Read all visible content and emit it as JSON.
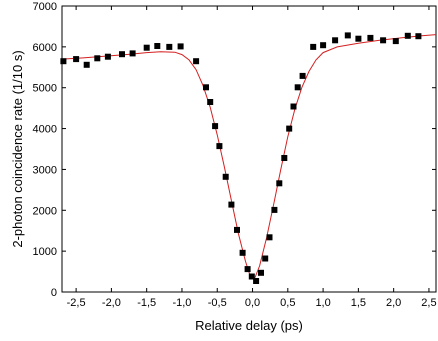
{
  "chart_data": {
    "type": "scatter",
    "title": "",
    "xlabel": "Relative delay (ps)",
    "ylabel": "2-photon coincidence rate (1/10 s)",
    "xlim": [
      -2.7,
      2.6
    ],
    "ylim": [
      0,
      7000
    ],
    "x_ticks": [
      -2.5,
      -2.0,
      -1.5,
      -1.0,
      -0.5,
      0.0,
      0.5,
      1.0,
      1.5,
      2.0,
      2.5
    ],
    "x_tick_labels": [
      "-2,5",
      "-2,0",
      "-1,5",
      "-1,0",
      "-0,5",
      "0,0",
      "0,5",
      "1,0",
      "1,5",
      "2,0",
      "2,5"
    ],
    "y_ticks": [
      0,
      1000,
      2000,
      3000,
      4000,
      5000,
      6000,
      7000
    ],
    "y_tick_labels": [
      "0",
      "1000",
      "2000",
      "3000",
      "4000",
      "5000",
      "6000",
      "7000"
    ],
    "grid": false,
    "series": [
      {
        "kind": "points",
        "marker": "square",
        "color": "#000000",
        "x": [
          -2.68,
          -2.5,
          -2.35,
          -2.2,
          -2.05,
          -1.85,
          -1.7,
          -1.5,
          -1.35,
          -1.18,
          -1.02,
          -0.8,
          -0.66,
          -0.6,
          -0.53,
          -0.47,
          -0.38,
          -0.3,
          -0.22,
          -0.14,
          -0.07,
          -0.01,
          0.05,
          0.12,
          0.18,
          0.24,
          0.31,
          0.38,
          0.45,
          0.52,
          0.58,
          0.64,
          0.71,
          0.86,
          1.0,
          1.17,
          1.35,
          1.5,
          1.67,
          1.85,
          2.03,
          2.2,
          2.35
        ],
        "y": [
          5650,
          5700,
          5560,
          5720,
          5760,
          5820,
          5840,
          5980,
          6020,
          6000,
          6010,
          5650,
          5010,
          4650,
          4060,
          3570,
          2820,
          2140,
          1520,
          960,
          560,
          380,
          270,
          470,
          820,
          1340,
          2010,
          2660,
          3280,
          4000,
          4540,
          5010,
          5290,
          6000,
          6040,
          6160,
          6280,
          6200,
          6220,
          6160,
          6140,
          6270,
          6260
        ]
      },
      {
        "kind": "fit",
        "color": "#d42020",
        "x": [
          -2.7,
          -2.4,
          -2.1,
          -1.8,
          -1.5,
          -1.3,
          -1.1,
          -1.0,
          -0.9,
          -0.8,
          -0.7,
          -0.6,
          -0.5,
          -0.4,
          -0.3,
          -0.2,
          -0.1,
          -0.03,
          0.03,
          0.1,
          0.2,
          0.3,
          0.4,
          0.5,
          0.6,
          0.7,
          0.8,
          0.9,
          1.0,
          1.2,
          1.5,
          1.8,
          2.1,
          2.4,
          2.6
        ],
        "y": [
          5700,
          5730,
          5770,
          5810,
          5860,
          5880,
          5870,
          5810,
          5680,
          5440,
          5050,
          4520,
          3850,
          3070,
          2240,
          1430,
          750,
          380,
          330,
          640,
          1330,
          2150,
          3000,
          3800,
          4480,
          5010,
          5400,
          5680,
          5860,
          6000,
          6090,
          6160,
          6220,
          6270,
          6300
        ]
      }
    ]
  }
}
